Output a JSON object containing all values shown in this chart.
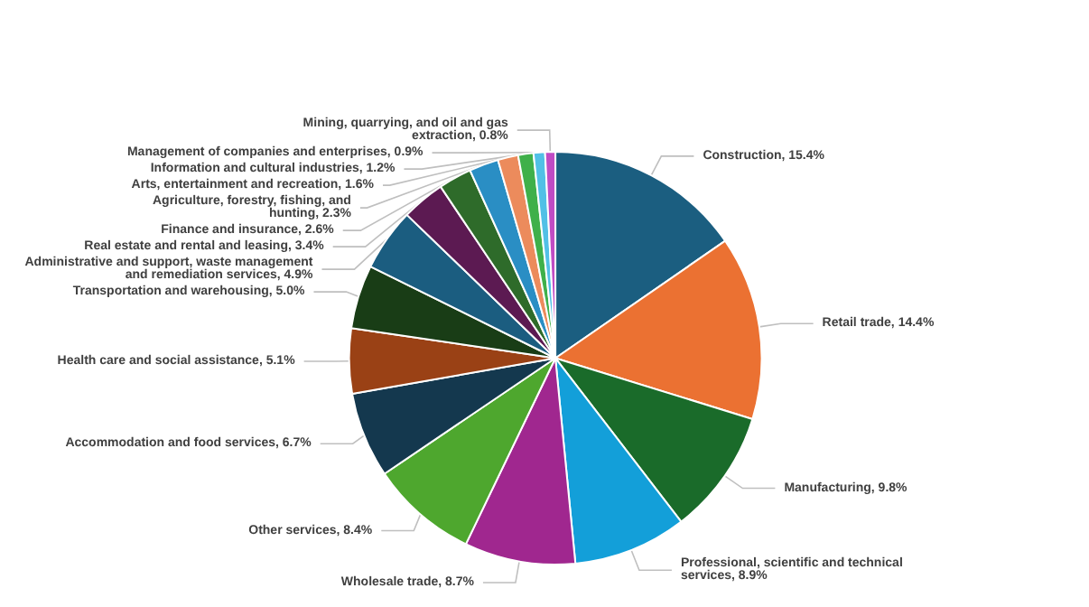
{
  "chart_data": {
    "type": "pie",
    "categories": [
      "Construction",
      "Retail trade",
      "Manufacturing",
      "Professional, scientific and technical services",
      "Wholesale trade",
      "Other services",
      "Accommodation and food services",
      "Health care and social assistance",
      "Transportation and warehousing",
      "Administrative and support, waste management and remediation services",
      "Real estate and rental and leasing",
      "Finance and insurance",
      "Agriculture, forestry, fishing, and hunting",
      "Arts, entertainment and recreation",
      "Information and cultural industries",
      "Management of companies and enterprises",
      "Mining, quarrying, and oil and gas extraction"
    ],
    "values": [
      15.4,
      14.4,
      9.8,
      8.9,
      8.7,
      8.4,
      6.7,
      5.1,
      5.0,
      4.9,
      3.4,
      2.6,
      2.3,
      1.6,
      1.2,
      0.9,
      0.8
    ],
    "value_labels": [
      "15.4%",
      "14.4%",
      "9.8%",
      "8.9%",
      "8.7%",
      "8.4%",
      "6.7%",
      "5.1%",
      "5.0%",
      "4.9%",
      "3.4%",
      "2.6%",
      "2.3%",
      "1.6%",
      "1.2%",
      "0.9%",
      "0.8%"
    ],
    "colors": [
      "#1b5e80",
      "#eb7132",
      "#1a6b2a",
      "#139fd9",
      "#a0278f",
      "#4ea72e",
      "#14384e",
      "#9a4115",
      "#193d16",
      "#1b5d80",
      "#5c1a52",
      "#2e6b2a",
      "#2a8ec4",
      "#ec8b5c",
      "#3fb04a",
      "#51c0e6",
      "#c04cc4"
    ],
    "legend": false
  }
}
